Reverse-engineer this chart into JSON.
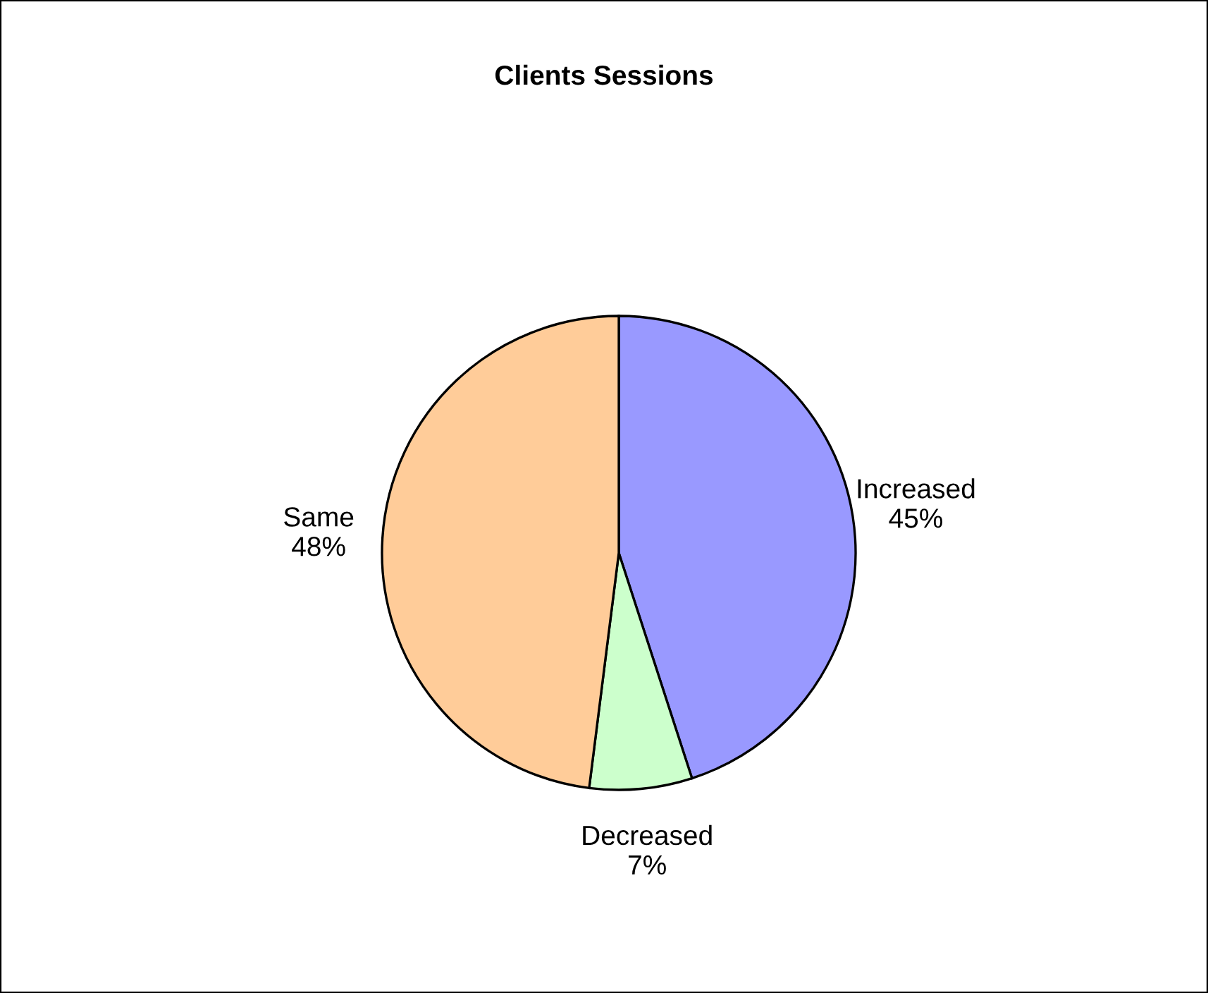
{
  "chart_data": {
    "type": "pie",
    "title": "Clients Sessions",
    "categories": [
      "Increased",
      "Decreased",
      "Same"
    ],
    "values": [
      45,
      7,
      48
    ],
    "colors": [
      "#9999ff",
      "#ccffcc",
      "#ffcc99"
    ],
    "value_labels": [
      "45%",
      "7%",
      "48%"
    ]
  }
}
